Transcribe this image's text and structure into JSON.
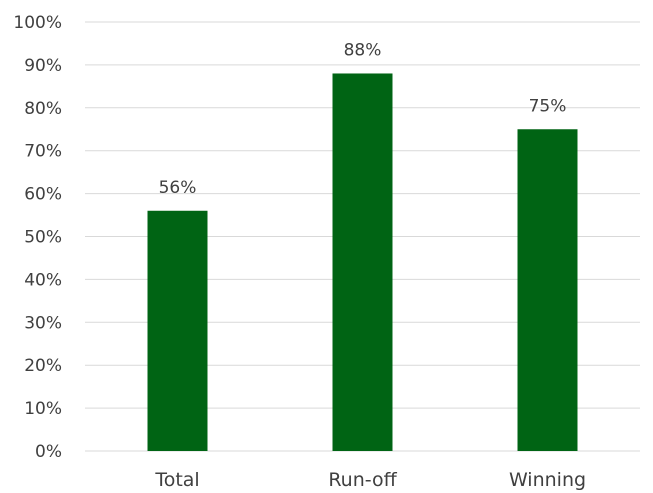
{
  "chart_data": {
    "type": "bar",
    "categories": [
      "Total",
      "Run-off",
      "Winning"
    ],
    "values": [
      56,
      88,
      75
    ],
    "value_labels": [
      "56%",
      "88%",
      "75%"
    ],
    "yticks": [
      "0%",
      "10%",
      "20%",
      "30%",
      "40%",
      "50%",
      "60%",
      "70%",
      "80%",
      "90%",
      "100%"
    ],
    "ylim": [
      0,
      100
    ],
    "bar_color": "#006414",
    "grid": true,
    "title": "",
    "xlabel": "",
    "ylabel": ""
  }
}
